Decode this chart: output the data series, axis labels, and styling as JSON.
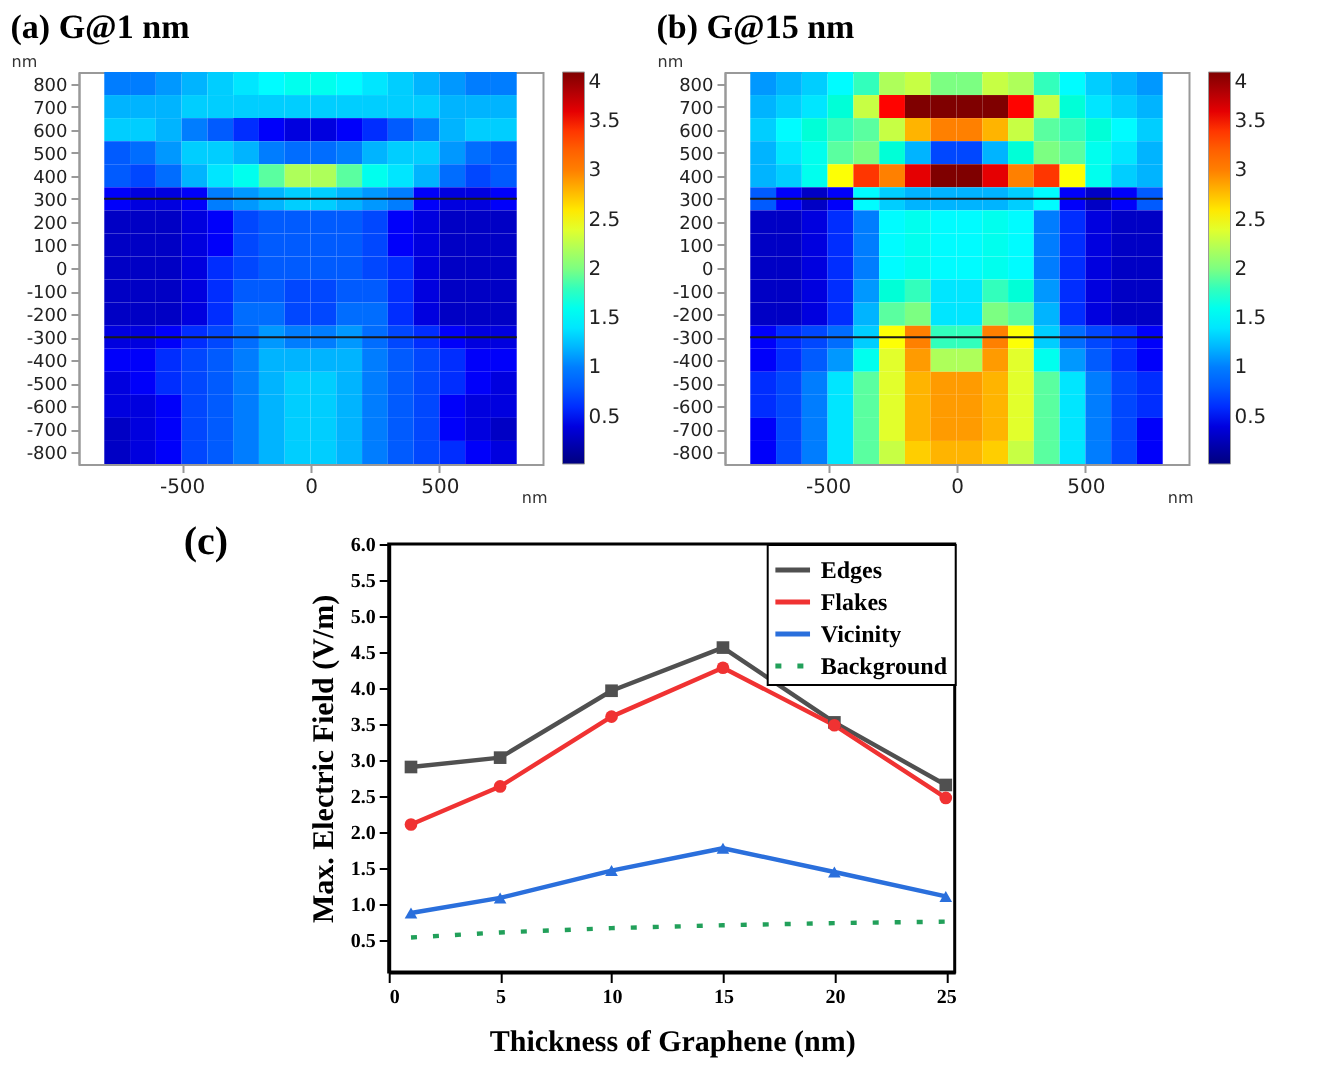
{
  "chart_data": [
    {
      "type": "heatmap",
      "title": "(a) G@1 nm",
      "xlabel": "nm",
      "ylabel": "nm",
      "x": [
        -750,
        -650,
        -550,
        -450,
        -350,
        -250,
        -150,
        -50,
        50,
        150,
        250,
        350,
        450,
        550,
        650,
        750
      ],
      "xlim": [
        -900,
        900
      ],
      "ylim": [
        -850,
        850
      ],
      "xticks": [
        -500,
        0,
        500
      ],
      "yticks": [
        -800,
        -700,
        -600,
        -500,
        -400,
        -300,
        -200,
        -100,
        0,
        100,
        200,
        300,
        400,
        500,
        600,
        700,
        800
      ],
      "clim": [
        0.02,
        4
      ],
      "cticks": [
        0.5,
        1,
        1.5,
        2,
        2.5,
        3,
        3.5,
        4
      ],
      "ref_lines": [
        {
          "axis": "y",
          "value": 300,
          "color": "#1a1a1a"
        },
        {
          "axis": "y",
          "value": -300,
          "color": "#1a1a1a"
        }
      ],
      "cells": [
        [
          1.0,
          1.0,
          1.1,
          1.2,
          1.3,
          1.4,
          1.5,
          1.6,
          1.6,
          1.5,
          1.4,
          1.3,
          1.2,
          1.1,
          1.0,
          1.0
        ],
        [
          1.2,
          1.2,
          1.2,
          1.3,
          1.3,
          1.3,
          1.3,
          1.3,
          1.3,
          1.3,
          1.3,
          1.3,
          1.3,
          1.2,
          1.2,
          1.2
        ],
        [
          1.3,
          1.3,
          1.2,
          1.0,
          0.8,
          0.6,
          0.5,
          0.4,
          0.4,
          0.5,
          0.6,
          0.8,
          1.0,
          1.2,
          1.3,
          1.3
        ],
        [
          0.8,
          0.9,
          1.1,
          1.3,
          1.3,
          1.2,
          1.0,
          0.9,
          0.9,
          1.0,
          1.2,
          1.3,
          1.3,
          1.1,
          0.9,
          0.8
        ],
        [
          0.8,
          0.7,
          0.9,
          1.2,
          1.4,
          1.6,
          1.9,
          2.2,
          2.2,
          1.9,
          1.6,
          1.4,
          1.2,
          0.9,
          0.7,
          0.8
        ],
        [
          0.5,
          0.4,
          0.4,
          0.5,
          1.0,
          1.1,
          1.2,
          1.3,
          1.3,
          1.2,
          1.1,
          1.0,
          0.5,
          0.4,
          0.4,
          0.5
        ],
        [
          0.3,
          0.3,
          0.3,
          0.4,
          0.5,
          0.7,
          0.8,
          0.8,
          0.8,
          0.8,
          0.7,
          0.5,
          0.4,
          0.3,
          0.3,
          0.3
        ],
        [
          0.3,
          0.3,
          0.3,
          0.4,
          0.5,
          0.7,
          0.8,
          0.8,
          0.8,
          0.8,
          0.7,
          0.5,
          0.4,
          0.3,
          0.3,
          0.3
        ],
        [
          0.3,
          0.3,
          0.3,
          0.4,
          0.6,
          0.7,
          0.8,
          0.8,
          0.8,
          0.8,
          0.7,
          0.6,
          0.4,
          0.3,
          0.3,
          0.3
        ],
        [
          0.3,
          0.3,
          0.3,
          0.4,
          0.6,
          0.8,
          0.8,
          0.7,
          0.7,
          0.8,
          0.8,
          0.6,
          0.4,
          0.3,
          0.3,
          0.3
        ],
        [
          0.3,
          0.3,
          0.3,
          0.4,
          0.6,
          0.9,
          0.9,
          0.7,
          0.7,
          0.9,
          0.9,
          0.6,
          0.4,
          0.3,
          0.3,
          0.3
        ],
        [
          0.4,
          0.4,
          0.5,
          0.6,
          0.7,
          0.9,
          1.1,
          1.0,
          1.0,
          1.1,
          0.9,
          0.7,
          0.6,
          0.5,
          0.4,
          0.4
        ],
        [
          0.5,
          0.5,
          0.6,
          0.7,
          0.8,
          1.0,
          1.2,
          1.2,
          1.2,
          1.2,
          1.0,
          0.8,
          0.7,
          0.6,
          0.5,
          0.5
        ],
        [
          0.4,
          0.5,
          0.6,
          0.7,
          0.8,
          1.0,
          1.2,
          1.3,
          1.3,
          1.2,
          1.0,
          0.8,
          0.7,
          0.6,
          0.5,
          0.4
        ],
        [
          0.4,
          0.4,
          0.5,
          0.7,
          0.8,
          1.0,
          1.2,
          1.3,
          1.3,
          1.2,
          1.0,
          0.8,
          0.7,
          0.5,
          0.4,
          0.4
        ],
        [
          0.3,
          0.4,
          0.5,
          0.7,
          0.8,
          1.0,
          1.2,
          1.3,
          1.3,
          1.2,
          1.0,
          0.8,
          0.7,
          0.5,
          0.4,
          0.3
        ],
        [
          0.3,
          0.4,
          0.5,
          0.7,
          0.8,
          1.0,
          1.2,
          1.3,
          1.3,
          1.2,
          1.0,
          0.8,
          0.7,
          0.6,
          0.5,
          0.4
        ]
      ]
    },
    {
      "type": "heatmap",
      "title": "(b) G@15 nm",
      "xlabel": "nm",
      "ylabel": "nm",
      "x": [
        -750,
        -650,
        -550,
        -450,
        -350,
        -250,
        -150,
        -50,
        50,
        150,
        250,
        350,
        450,
        550,
        650,
        750
      ],
      "xlim": [
        -900,
        900
      ],
      "ylim": [
        -850,
        850
      ],
      "xticks": [
        -500,
        0,
        500
      ],
      "yticks": [
        -800,
        -700,
        -600,
        -500,
        -400,
        -300,
        -200,
        -100,
        0,
        100,
        200,
        300,
        400,
        500,
        600,
        700,
        800
      ],
      "clim": [
        0.02,
        4
      ],
      "cticks": [
        0.5,
        1,
        1.5,
        2,
        2.5,
        3,
        3.5,
        4
      ],
      "ref_lines": [
        {
          "axis": "y",
          "value": 300,
          "color": "#1a1a1a"
        },
        {
          "axis": "y",
          "value": -300,
          "color": "#1a1a1a"
        }
      ],
      "cells": [
        [
          1.1,
          1.2,
          1.3,
          1.5,
          1.8,
          2.2,
          2.3,
          2.0,
          2.0,
          2.3,
          2.2,
          1.8,
          1.5,
          1.3,
          1.2,
          1.1
        ],
        [
          1.2,
          1.3,
          1.4,
          1.7,
          2.3,
          3.5,
          4.0,
          4.0,
          4.0,
          4.0,
          3.5,
          2.3,
          1.7,
          1.4,
          1.3,
          1.2
        ],
        [
          1.3,
          1.5,
          1.7,
          1.8,
          1.9,
          2.3,
          2.8,
          3.0,
          3.0,
          2.8,
          2.3,
          1.9,
          1.8,
          1.7,
          1.5,
          1.3
        ],
        [
          1.2,
          1.4,
          1.6,
          1.9,
          2.0,
          1.7,
          1.2,
          0.7,
          0.7,
          1.2,
          1.7,
          2.0,
          1.9,
          1.6,
          1.4,
          1.2
        ],
        [
          1.2,
          1.3,
          1.6,
          2.5,
          3.4,
          3.0,
          3.6,
          4.0,
          4.0,
          3.6,
          3.0,
          3.4,
          2.5,
          1.6,
          1.3,
          1.2
        ],
        [
          0.8,
          0.5,
          0.3,
          0.5,
          1.5,
          1.3,
          1.2,
          1.2,
          1.2,
          1.2,
          1.3,
          1.5,
          0.5,
          0.3,
          0.5,
          0.8
        ],
        [
          0.3,
          0.3,
          0.4,
          0.6,
          1.0,
          1.5,
          1.6,
          1.5,
          1.5,
          1.6,
          1.5,
          1.0,
          0.6,
          0.4,
          0.3,
          0.3
        ],
        [
          0.3,
          0.3,
          0.4,
          0.6,
          1.0,
          1.5,
          1.6,
          1.5,
          1.5,
          1.6,
          1.5,
          1.0,
          0.6,
          0.4,
          0.3,
          0.3
        ],
        [
          0.3,
          0.3,
          0.4,
          0.6,
          1.0,
          1.5,
          1.6,
          1.5,
          1.5,
          1.6,
          1.5,
          1.0,
          0.6,
          0.4,
          0.3,
          0.3
        ],
        [
          0.3,
          0.3,
          0.4,
          0.6,
          1.1,
          1.7,
          1.8,
          1.4,
          1.4,
          1.8,
          1.7,
          1.1,
          0.6,
          0.4,
          0.3,
          0.3
        ],
        [
          0.3,
          0.3,
          0.4,
          0.6,
          1.2,
          1.9,
          2.0,
          1.4,
          1.4,
          2.0,
          1.9,
          1.2,
          0.6,
          0.4,
          0.3,
          0.3
        ],
        [
          0.5,
          0.6,
          0.7,
          0.9,
          1.3,
          2.5,
          3.0,
          1.8,
          1.8,
          3.0,
          2.5,
          1.3,
          0.9,
          0.7,
          0.6,
          0.5
        ],
        [
          0.5,
          0.6,
          0.8,
          1.1,
          1.6,
          2.4,
          2.9,
          2.2,
          2.2,
          2.9,
          2.4,
          1.6,
          1.1,
          0.8,
          0.6,
          0.5
        ],
        [
          0.6,
          0.7,
          1.0,
          1.4,
          1.9,
          2.4,
          2.8,
          2.9,
          2.9,
          2.8,
          2.4,
          1.9,
          1.4,
          1.0,
          0.7,
          0.6
        ],
        [
          0.6,
          0.7,
          1.0,
          1.4,
          1.9,
          2.4,
          2.8,
          2.9,
          2.9,
          2.8,
          2.4,
          1.9,
          1.4,
          1.0,
          0.7,
          0.6
        ],
        [
          0.5,
          0.7,
          1.0,
          1.4,
          1.9,
          2.4,
          2.8,
          2.9,
          2.9,
          2.8,
          2.4,
          1.9,
          1.4,
          1.0,
          0.7,
          0.5
        ],
        [
          0.5,
          0.7,
          1.0,
          1.4,
          1.9,
          2.3,
          2.7,
          2.8,
          2.8,
          2.7,
          2.3,
          1.9,
          1.4,
          1.0,
          0.7,
          0.5
        ]
      ]
    },
    {
      "type": "line",
      "title": "(c)",
      "xlabel": "Thickness of Graphene (nm)",
      "ylabel": "Max. Electric Field (V/m)",
      "x": [
        1,
        5,
        10,
        15,
        20,
        25
      ],
      "xlim": [
        0,
        25.4
      ],
      "ylim": [
        0.05,
        6
      ],
      "xticks": [
        0,
        5,
        10,
        15,
        20,
        25
      ],
      "yticks": [
        0.5,
        {
          "value": 1,
          "label": "1.0"
        },
        1.5,
        {
          "value": 2,
          "label": "2.0"
        },
        2.5,
        {
          "value": 3,
          "label": "3.0"
        },
        3.5,
        {
          "value": 4,
          "label": "4.0"
        },
        4.5,
        {
          "value": 5,
          "label": "5.0"
        },
        5.5,
        {
          "value": 6,
          "label": "6.0"
        }
      ],
      "legend": "top right",
      "series": [
        {
          "name": "Edges",
          "color": "#505050",
          "marker": "square",
          "values": [
            2.9,
            3.03,
            3.96,
            4.56,
            3.52,
            2.65
          ]
        },
        {
          "name": "Flakes",
          "color": "#f03232",
          "marker": "circle",
          "values": [
            2.1,
            2.63,
            3.6,
            4.28,
            3.48,
            2.47
          ]
        },
        {
          "name": "Vicinity",
          "color": "#2a6fdc",
          "marker": "triangle",
          "values": [
            0.87,
            1.08,
            1.46,
            1.77,
            1.44,
            1.1
          ]
        },
        {
          "name": "Background",
          "color": "#22a05a",
          "marker": "none",
          "line_style": "dotted",
          "values": [
            0.53,
            0.6,
            0.66,
            0.7,
            0.73,
            0.75
          ]
        }
      ]
    }
  ]
}
